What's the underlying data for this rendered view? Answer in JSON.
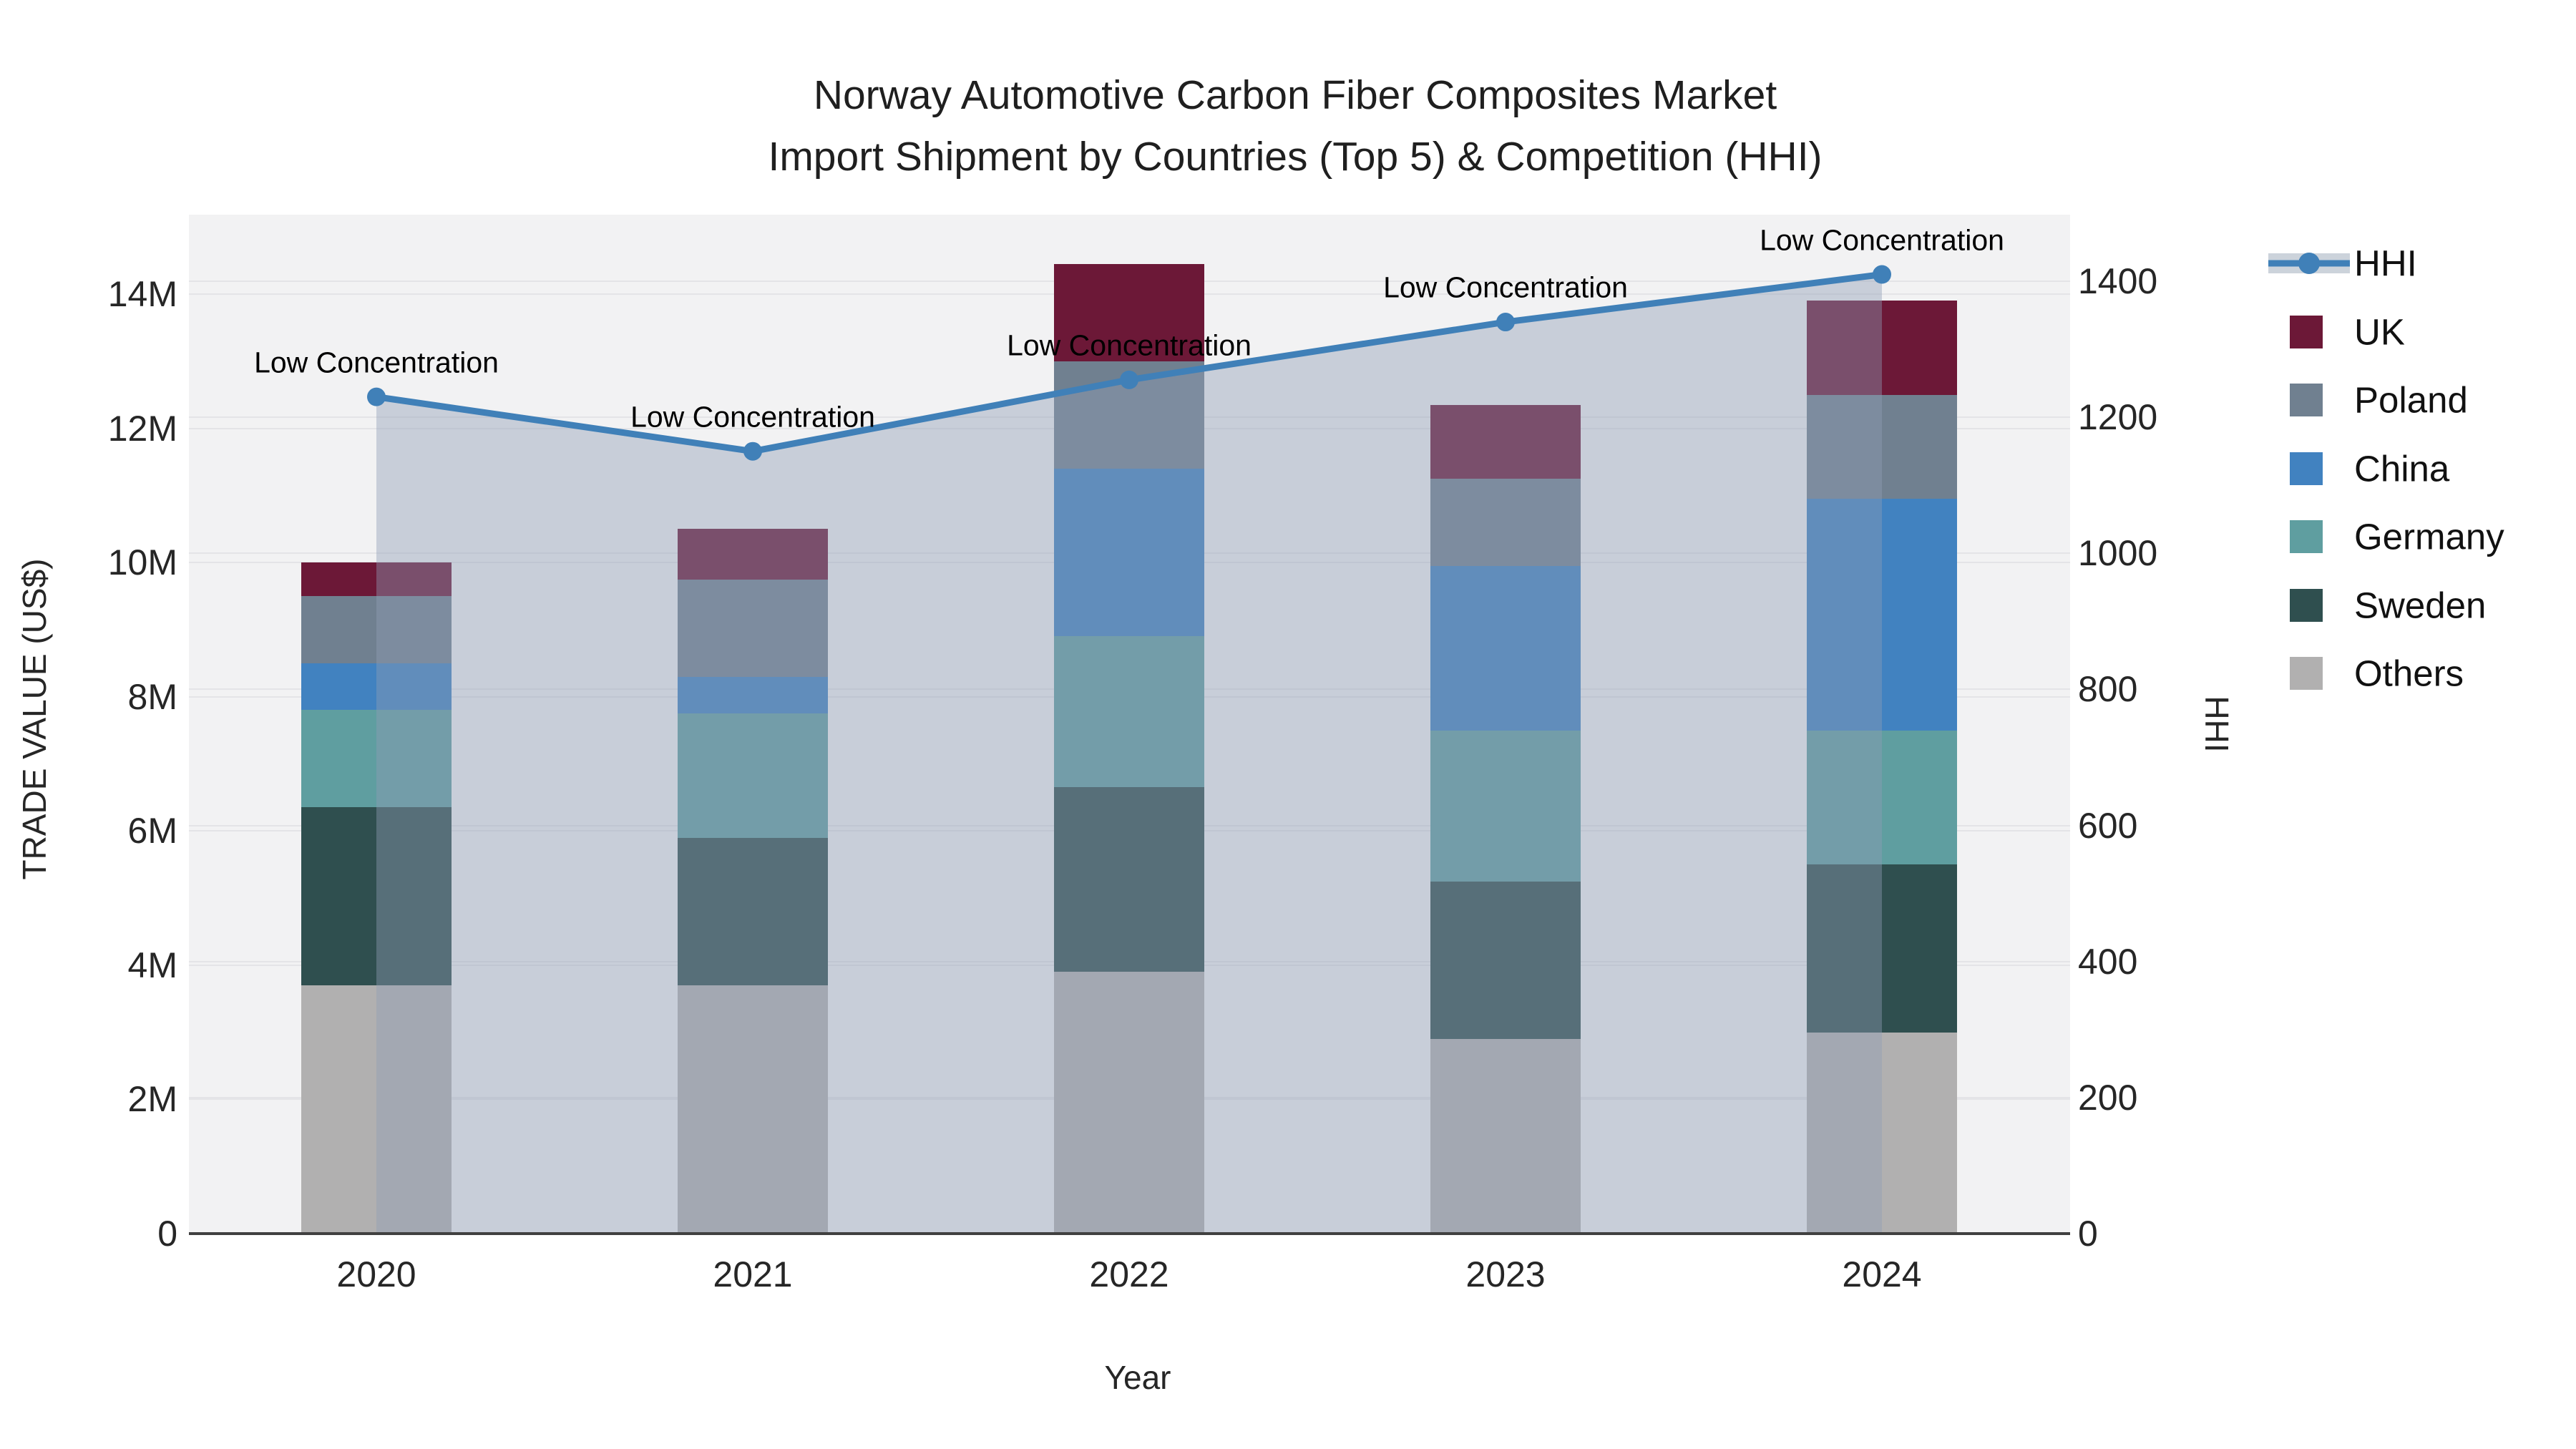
{
  "title": {
    "line1": "Norway Automotive Carbon Fiber Composites Market",
    "line2": "Import Shipment by Countries (Top 5) & Competition (HHI)"
  },
  "axes": {
    "x": {
      "label": "Year",
      "ticks": [
        "2020",
        "2021",
        "2022",
        "2023",
        "2024"
      ]
    },
    "y_left": {
      "label": "TRADE VALUE (US$)",
      "tick_values": [
        0,
        2,
        4,
        6,
        8,
        10,
        12,
        14
      ],
      "tick_labels": [
        "0",
        "2M",
        "4M",
        "6M",
        "8M",
        "10M",
        "12M",
        "14M"
      ]
    },
    "y_right": {
      "label": "HHI",
      "tick_values": [
        0,
        200,
        400,
        600,
        800,
        1000,
        1200,
        1400
      ],
      "tick_labels": [
        "0",
        "200",
        "400",
        "600",
        "800",
        "1000",
        "1200",
        "1400"
      ]
    }
  },
  "annotation_text": "Low Concentration",
  "legend": {
    "items": [
      {
        "label": "HHI",
        "type": "line",
        "color": "#4080b8"
      },
      {
        "label": "UK",
        "type": "swatch",
        "color": "#6c1837"
      },
      {
        "label": "Poland",
        "type": "swatch",
        "color": "#708090"
      },
      {
        "label": "China",
        "type": "swatch",
        "color": "#4182c0"
      },
      {
        "label": "Germany",
        "type": "swatch",
        "color": "#5f9ea0"
      },
      {
        "label": "Sweden",
        "type": "swatch",
        "color": "#2f4f4f"
      },
      {
        "label": "Others",
        "type": "swatch",
        "color": "#b1b0b0"
      }
    ]
  },
  "colors": {
    "hhi_line": "#4080b8",
    "hhi_area": "rgba(144,158,180,0.42)",
    "plot_bg": "#f2f2f3",
    "grid": "#e4e4e7",
    "axis_line": "#404040"
  },
  "chart_data": [
    {
      "type": "bar",
      "stacked": true,
      "title": "Norway Automotive Carbon Fiber Composites Market — Import Shipment by Countries (Top 5)",
      "xlabel": "Year",
      "ylabel": "TRADE VALUE (US$)",
      "values_unit": "million US$",
      "ylim": [
        0,
        15.2
      ],
      "grid": true,
      "legend_position": "right",
      "categories": [
        2020,
        2021,
        2022,
        2023,
        2024
      ],
      "series": [
        {
          "name": "Others",
          "color": "#b1b0b0",
          "values": [
            3.7,
            3.7,
            3.9,
            2.9,
            3.0
          ]
        },
        {
          "name": "Sweden",
          "color": "#2f4f4f",
          "values": [
            2.65,
            2.2,
            2.75,
            2.35,
            2.5
          ]
        },
        {
          "name": "Germany",
          "color": "#5f9ea0",
          "values": [
            1.45,
            1.85,
            2.25,
            2.25,
            2.0
          ]
        },
        {
          "name": "China",
          "color": "#4182c0",
          "values": [
            0.7,
            0.55,
            2.5,
            2.45,
            3.45
          ]
        },
        {
          "name": "Poland",
          "color": "#708090",
          "values": [
            1.0,
            1.45,
            1.6,
            1.3,
            1.55
          ]
        },
        {
          "name": "UK",
          "color": "#6c1837",
          "values": [
            0.5,
            0.75,
            1.45,
            1.1,
            1.4
          ]
        }
      ],
      "stack_totals": [
        10.0,
        10.5,
        14.45,
        12.35,
        13.9
      ]
    },
    {
      "type": "line",
      "name": "HHI",
      "yaxis": "right",
      "ylabel": "HHI",
      "ylim": [
        0,
        1450
      ],
      "x": [
        2020,
        2021,
        2022,
        2023,
        2024
      ],
      "values": [
        1230,
        1150,
        1255,
        1340,
        1410
      ],
      "area_fill": true,
      "marker": "circle",
      "annotations": [
        "Low Concentration",
        "Low Concentration",
        "Low Concentration",
        "Low Concentration",
        "Low Concentration"
      ]
    }
  ]
}
